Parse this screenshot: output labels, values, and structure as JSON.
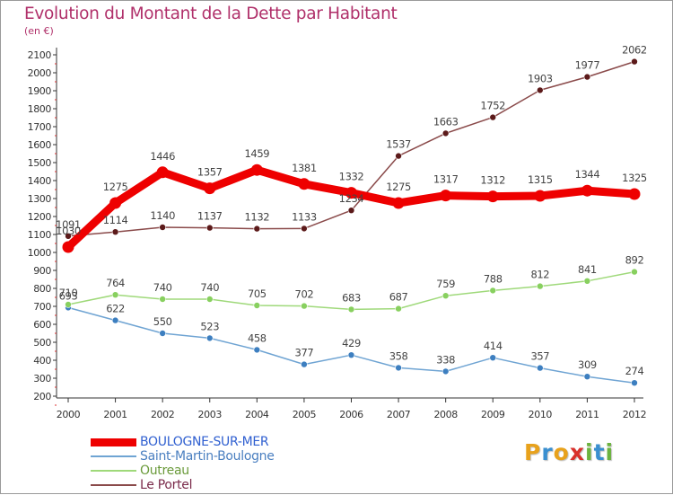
{
  "header": {
    "title": "Evolution du Montant de la Dette par Habitant",
    "subtitle": "(en €)"
  },
  "brand": {
    "letters": [
      "P",
      "r",
      "o",
      "x",
      "i",
      "t",
      "i"
    ],
    "colors": [
      "#e8a21c",
      "#3a8fd0",
      "#e8a21c",
      "#d9302b",
      "#6cb33f",
      "#3a8fd0",
      "#6cb33f"
    ]
  },
  "chart_data": {
    "type": "line",
    "title": "Evolution du Montant de la Dette par Habitant",
    "subtitle": "(en €)",
    "x": [
      "2000",
      "2001",
      "2002",
      "2003",
      "2004",
      "2005",
      "2006",
      "2007",
      "2008",
      "2009",
      "2010",
      "2011",
      "2012"
    ],
    "y_ticks": [
      200,
      300,
      400,
      500,
      600,
      700,
      800,
      900,
      1000,
      1100,
      1200,
      1300,
      1400,
      1500,
      1600,
      1700,
      1800,
      1900,
      2000,
      2100
    ],
    "ylim": [
      200,
      2100
    ],
    "grid": false,
    "legend_position": "bottom-left",
    "series": [
      {
        "name": "BOULOGNE-SUR-MER",
        "color": "#ee0000",
        "marker_color": "#ee0000",
        "label_color": "#444444",
        "emphasis": true,
        "values": [
          1030,
          1275,
          1446,
          1357,
          1459,
          1381,
          1332,
          1275,
          1317,
          1312,
          1315,
          1344,
          1325
        ]
      },
      {
        "name": "Saint-Martin-Boulogne",
        "color": "#6fa4d3",
        "marker_color": "#3d7fc0",
        "label_color": "#444444",
        "emphasis": false,
        "values": [
          693,
          622,
          550,
          523,
          458,
          377,
          429,
          358,
          338,
          414,
          357,
          309,
          274
        ]
      },
      {
        "name": "Outreau",
        "color": "#9fd97a",
        "marker_color": "#88d05f",
        "label_color": "#444444",
        "emphasis": false,
        "values": [
          710,
          764,
          740,
          740,
          705,
          702,
          683,
          687,
          759,
          788,
          812,
          841,
          892
        ]
      },
      {
        "name": "Le Portel",
        "color": "#8a4a4a",
        "marker_color": "#5c1a1a",
        "label_color": "#444444",
        "emphasis": false,
        "values": [
          1091,
          1114,
          1140,
          1137,
          1132,
          1133,
          1234,
          1537,
          1663,
          1752,
          1903,
          1977,
          2062
        ]
      }
    ]
  }
}
